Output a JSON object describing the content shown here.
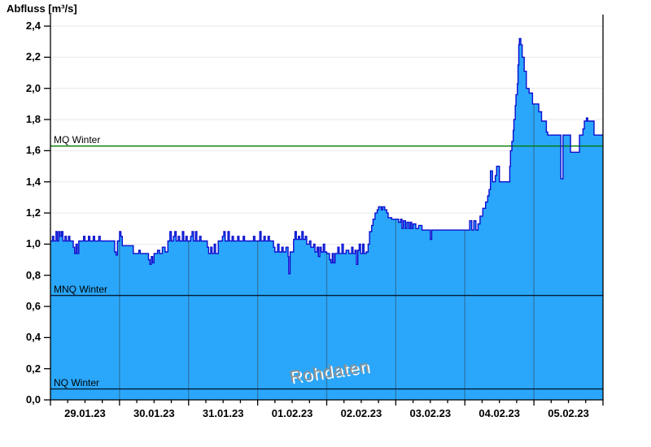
{
  "title": "Abfluss [m³/s]",
  "watermark": "Rohdaten",
  "chart_data": {
    "type": "area",
    "title": "Abfluss [m³/s]",
    "xlabel": "",
    "ylabel": "Abfluss [m³/s]",
    "ylim": [
      0,
      2.4
    ],
    "grid": "horizontal-light, vertical-day-lines-over-fill",
    "legend_position": "none",
    "x_axis": {
      "unit": "date",
      "range_days": [
        0,
        8
      ],
      "day_labels": [
        "29.01.23",
        "30.01.23",
        "31.01.23",
        "01.02.23",
        "02.02.23",
        "03.02.23",
        "04.02.23",
        "05.02.23"
      ],
      "minor_tick_step_days": 0.25
    },
    "y_axis": {
      "tick_values": [
        0,
        0.2,
        0.4,
        0.6,
        0.8,
        1.0,
        1.2,
        1.4,
        1.6,
        1.8,
        2.0,
        2.2,
        2.4
      ],
      "tick_labels": [
        "0,0",
        "0,2",
        "0,4",
        "0,6",
        "0,8",
        "1,0",
        "1,2",
        "1,4",
        "1,6",
        "1,8",
        "2,0",
        "2,2",
        "2,4"
      ]
    },
    "reference_lines": [
      {
        "label": "MQ Winter",
        "value": 1.63,
        "color": "#007a00"
      },
      {
        "label": "MNQ Winter",
        "value": 0.67,
        "color": "#001c38"
      },
      {
        "label": "NQ Winter",
        "value": 0.07,
        "color": "#001c38"
      }
    ],
    "colors": {
      "fill": "#2aa7fa",
      "line": "#0d0dcf",
      "day_gridline": "#2d76a8",
      "h_gridline": "#e8e8e8",
      "axis": "#000000"
    },
    "series": [
      {
        "name": "Abfluss Rohdaten",
        "interpolation": "step-after",
        "points": [
          [
            0.0,
            1.02
          ],
          [
            0.03,
            1.05
          ],
          [
            0.05,
            1.02
          ],
          [
            0.08,
            1.08
          ],
          [
            0.1,
            1.02
          ],
          [
            0.12,
            1.08
          ],
          [
            0.14,
            1.05
          ],
          [
            0.16,
            1.08
          ],
          [
            0.18,
            1.02
          ],
          [
            0.21,
            1.05
          ],
          [
            0.23,
            1.02
          ],
          [
            0.26,
            1.05
          ],
          [
            0.28,
            1.02
          ],
          [
            0.33,
            0.98
          ],
          [
            0.35,
            0.94
          ],
          [
            0.37,
            1.0
          ],
          [
            0.39,
            0.94
          ],
          [
            0.41,
            1.02
          ],
          [
            0.48,
            1.05
          ],
          [
            0.5,
            1.02
          ],
          [
            0.55,
            1.05
          ],
          [
            0.57,
            1.02
          ],
          [
            0.62,
            1.05
          ],
          [
            0.64,
            1.02
          ],
          [
            0.7,
            1.05
          ],
          [
            0.72,
            1.02
          ],
          [
            0.93,
            0.95
          ],
          [
            0.95,
            0.93
          ],
          [
            0.97,
            1.02
          ],
          [
            1.0,
            1.08
          ],
          [
            1.02,
            1.05
          ],
          [
            1.04,
            0.99
          ],
          [
            1.2,
            0.94
          ],
          [
            1.28,
            0.96
          ],
          [
            1.3,
            0.94
          ],
          [
            1.42,
            0.9
          ],
          [
            1.44,
            0.87
          ],
          [
            1.46,
            0.92
          ],
          [
            1.48,
            0.88
          ],
          [
            1.5,
            0.94
          ],
          [
            1.55,
            0.96
          ],
          [
            1.58,
            0.94
          ],
          [
            1.62,
            0.98
          ],
          [
            1.66,
            0.95
          ],
          [
            1.7,
            1.02
          ],
          [
            1.73,
            1.08
          ],
          [
            1.75,
            1.02
          ],
          [
            1.78,
            1.05
          ],
          [
            1.8,
            1.08
          ],
          [
            1.82,
            1.02
          ],
          [
            1.85,
            1.05
          ],
          [
            1.87,
            1.02
          ],
          [
            1.91,
            1.08
          ],
          [
            1.93,
            1.02
          ],
          [
            1.96,
            1.05
          ],
          [
            1.98,
            1.02
          ],
          [
            2.03,
            1.05
          ],
          [
            2.05,
            1.08
          ],
          [
            2.07,
            1.02
          ],
          [
            2.1,
            1.08
          ],
          [
            2.12,
            1.02
          ],
          [
            2.16,
            1.05
          ],
          [
            2.18,
            1.02
          ],
          [
            2.27,
            0.98
          ],
          [
            2.29,
            0.94
          ],
          [
            2.32,
            0.98
          ],
          [
            2.34,
            0.94
          ],
          [
            2.37,
            1.0
          ],
          [
            2.39,
            0.94
          ],
          [
            2.43,
            1.02
          ],
          [
            2.49,
            1.05
          ],
          [
            2.51,
            1.08
          ],
          [
            2.53,
            1.02
          ],
          [
            2.57,
            1.08
          ],
          [
            2.59,
            1.02
          ],
          [
            2.63,
            1.05
          ],
          [
            2.65,
            1.02
          ],
          [
            2.71,
            1.05
          ],
          [
            2.73,
            1.02
          ],
          [
            2.79,
            1.05
          ],
          [
            2.81,
            1.02
          ],
          [
            2.94,
            1.05
          ],
          [
            2.96,
            1.02
          ],
          [
            3.03,
            1.08
          ],
          [
            3.05,
            1.02
          ],
          [
            3.09,
            1.05
          ],
          [
            3.11,
            1.02
          ],
          [
            3.15,
            1.05
          ],
          [
            3.17,
            1.02
          ],
          [
            3.23,
            0.98
          ],
          [
            3.25,
            0.95
          ],
          [
            3.29,
            1.0
          ],
          [
            3.31,
            0.95
          ],
          [
            3.35,
            0.98
          ],
          [
            3.37,
            0.95
          ],
          [
            3.41,
            0.98
          ],
          [
            3.44,
            0.92
          ],
          [
            3.45,
            0.81
          ],
          [
            3.47,
            0.95
          ],
          [
            3.52,
            1.03
          ],
          [
            3.54,
            1.08
          ],
          [
            3.56,
            1.03
          ],
          [
            3.59,
            1.05
          ],
          [
            3.61,
            1.03
          ],
          [
            3.64,
            1.08
          ],
          [
            3.66,
            1.03
          ],
          [
            3.69,
            1.05
          ],
          [
            3.71,
            1.0
          ],
          [
            3.75,
            1.02
          ],
          [
            3.77,
            0.98
          ],
          [
            3.81,
            1.0
          ],
          [
            3.83,
            0.95
          ],
          [
            3.86,
            0.98
          ],
          [
            3.88,
            0.92
          ],
          [
            3.9,
            0.98
          ],
          [
            3.92,
            0.95
          ],
          [
            3.95,
            1.0
          ],
          [
            3.97,
            0.95
          ],
          [
            4.0,
            0.94
          ],
          [
            4.04,
            0.9
          ],
          [
            4.06,
            0.88
          ],
          [
            4.08,
            0.94
          ],
          [
            4.1,
            0.88
          ],
          [
            4.12,
            0.94
          ],
          [
            4.16,
            0.98
          ],
          [
            4.18,
            0.94
          ],
          [
            4.22,
            1.0
          ],
          [
            4.24,
            0.94
          ],
          [
            4.28,
            0.96
          ],
          [
            4.32,
            0.94
          ],
          [
            4.36,
            0.98
          ],
          [
            4.38,
            0.94
          ],
          [
            4.41,
            0.96
          ],
          [
            4.43,
            0.87
          ],
          [
            4.45,
            0.96
          ],
          [
            4.47,
            1.0
          ],
          [
            4.49,
            0.94
          ],
          [
            4.52,
            1.0
          ],
          [
            4.54,
            0.94
          ],
          [
            4.57,
            0.95
          ],
          [
            4.6,
            1.0
          ],
          [
            4.62,
            1.08
          ],
          [
            4.65,
            1.12
          ],
          [
            4.67,
            1.16
          ],
          [
            4.7,
            1.2
          ],
          [
            4.73,
            1.22
          ],
          [
            4.75,
            1.24
          ],
          [
            4.79,
            1.22
          ],
          [
            4.81,
            1.24
          ],
          [
            4.84,
            1.22
          ],
          [
            4.87,
            1.2
          ],
          [
            4.89,
            1.17
          ],
          [
            4.94,
            1.16
          ],
          [
            5.0,
            1.16
          ],
          [
            5.04,
            1.14
          ],
          [
            5.07,
            1.16
          ],
          [
            5.09,
            1.1
          ],
          [
            5.11,
            1.15
          ],
          [
            5.14,
            1.1
          ],
          [
            5.16,
            1.14
          ],
          [
            5.19,
            1.1
          ],
          [
            5.21,
            1.14
          ],
          [
            5.23,
            1.1
          ],
          [
            5.25,
            1.13
          ],
          [
            5.29,
            1.1
          ],
          [
            5.33,
            1.12
          ],
          [
            5.38,
            1.09
          ],
          [
            5.48,
            1.09
          ],
          [
            5.5,
            1.03
          ],
          [
            5.52,
            1.09
          ],
          [
            6.0,
            1.09
          ],
          [
            6.07,
            1.15
          ],
          [
            6.1,
            1.09
          ],
          [
            6.13,
            1.15
          ],
          [
            6.16,
            1.09
          ],
          [
            6.19,
            1.13
          ],
          [
            6.22,
            1.18
          ],
          [
            6.26,
            1.23
          ],
          [
            6.3,
            1.27
          ],
          [
            6.33,
            1.31
          ],
          [
            6.35,
            1.35
          ],
          [
            6.37,
            1.47
          ],
          [
            6.4,
            1.4
          ],
          [
            6.44,
            1.44
          ],
          [
            6.46,
            1.5
          ],
          [
            6.5,
            1.4
          ],
          [
            6.65,
            1.5
          ],
          [
            6.66,
            1.6
          ],
          [
            6.68,
            1.66
          ],
          [
            6.7,
            1.73
          ],
          [
            6.71,
            1.8
          ],
          [
            6.73,
            1.89
          ],
          [
            6.74,
            1.96
          ],
          [
            6.76,
            2.03
          ],
          [
            6.77,
            2.15
          ],
          [
            6.78,
            2.28
          ],
          [
            6.79,
            2.32
          ],
          [
            6.81,
            2.28
          ],
          [
            6.83,
            2.2
          ],
          [
            6.86,
            2.11
          ],
          [
            6.89,
            2.0
          ],
          [
            6.93,
            1.97
          ],
          [
            6.98,
            1.9
          ],
          [
            7.0,
            1.9
          ],
          [
            7.07,
            1.85
          ],
          [
            7.11,
            1.79
          ],
          [
            7.18,
            1.72
          ],
          [
            7.2,
            1.7
          ],
          [
            7.39,
            1.42
          ],
          [
            7.42,
            1.7
          ],
          [
            7.53,
            1.59
          ],
          [
            7.66,
            1.7
          ],
          [
            7.71,
            1.74
          ],
          [
            7.73,
            1.79
          ],
          [
            7.76,
            1.81
          ],
          [
            7.78,
            1.79
          ],
          [
            7.87,
            1.7
          ],
          [
            8.0,
            1.7
          ]
        ]
      }
    ]
  }
}
